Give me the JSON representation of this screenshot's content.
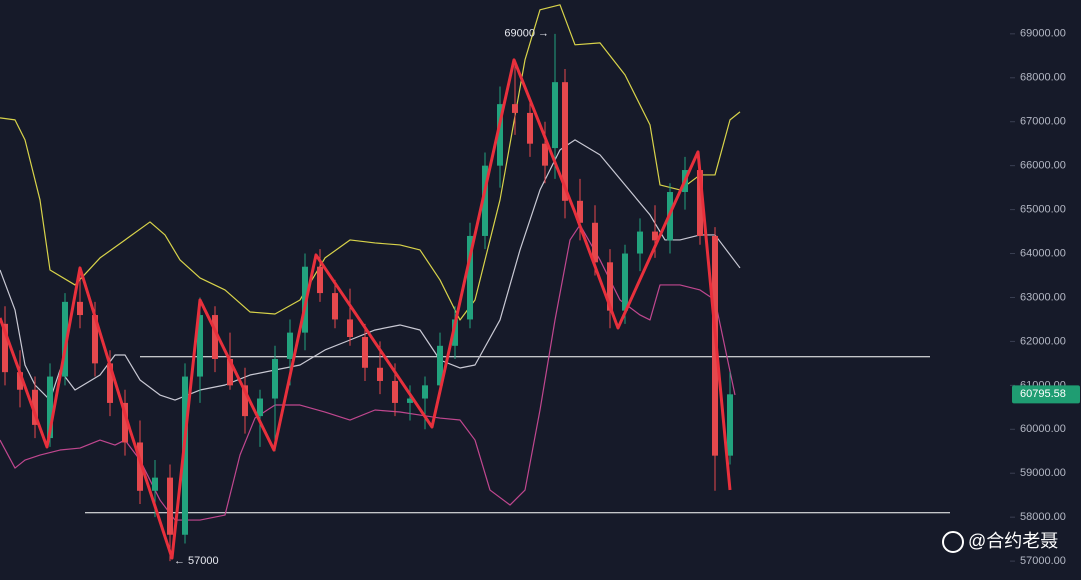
{
  "chart_data": {
    "type": "candlestick",
    "xlim": [
      0,
      202
    ],
    "ylim": [
      56570,
      69770
    ],
    "yticks": [
      {
        "value": 57000,
        "label": "57000.00"
      },
      {
        "value": 58000,
        "label": "58000.00"
      },
      {
        "value": 59000,
        "label": "59000.00"
      },
      {
        "value": 60000,
        "label": "60000.00"
      },
      {
        "value": 61000,
        "label": "61000.00"
      },
      {
        "value": 62000,
        "label": "62000.00"
      },
      {
        "value": 63000,
        "label": "63000.00"
      },
      {
        "value": 64000,
        "label": "64000.00"
      },
      {
        "value": 65000,
        "label": "65000.00"
      },
      {
        "value": 66000,
        "label": "66000.00"
      },
      {
        "value": 67000,
        "label": "67000.00"
      },
      {
        "value": 68000,
        "label": "68000.00"
      },
      {
        "value": 69000,
        "label": "69000.00"
      }
    ],
    "up_color": "#22a37e",
    "down_color": "#e5484d",
    "x": [
      1,
      4,
      7,
      10,
      13,
      16,
      19,
      22,
      25,
      28,
      31,
      34,
      37,
      40,
      43,
      46,
      49,
      52,
      55,
      58,
      61,
      64,
      67,
      70,
      73,
      76,
      79,
      82,
      85,
      88,
      91,
      94,
      97,
      100,
      103,
      106,
      109,
      111,
      113,
      116,
      119,
      122,
      125,
      128,
      131,
      134,
      137,
      140,
      143,
      146
    ],
    "open": [
      62400,
      61300,
      60900,
      59800,
      61200,
      62900,
      62600,
      61500,
      60600,
      59700,
      58600,
      58900,
      57600,
      61200,
      62600,
      61600,
      61000,
      60300,
      60700,
      61600,
      62200,
      63700,
      63100,
      62500,
      62100,
      61400,
      61100,
      60600,
      60700,
      61000,
      61900,
      62500,
      64400,
      66000,
      67400,
      67200,
      66500,
      66400,
      67900,
      65200,
      64700,
      63800,
      62700,
      64000,
      64500,
      64300,
      65400,
      65900,
      64400,
      59400
    ],
    "high": [
      62800,
      61800,
      61200,
      61500,
      63100,
      63700,
      62900,
      61800,
      60900,
      60200,
      59300,
      59200,
      61500,
      63000,
      62800,
      62200,
      61400,
      60900,
      61900,
      62500,
      64000,
      64100,
      63400,
      63200,
      62400,
      62000,
      61500,
      61000,
      61200,
      62200,
      62800,
      64700,
      66300,
      67800,
      68400,
      67500,
      67000,
      69000,
      68200,
      65700,
      65100,
      64100,
      64200,
      64800,
      65100,
      65600,
      66200,
      66000,
      64600,
      61300
    ],
    "low": [
      61000,
      60500,
      59800,
      59600,
      61000,
      62300,
      61200,
      60300,
      59400,
      58300,
      58000,
      57000,
      57400,
      60600,
      61300,
      60900,
      59900,
      59600,
      59500,
      61000,
      61800,
      62900,
      62300,
      61900,
      61100,
      60800,
      60300,
      60200,
      60000,
      60800,
      61600,
      62300,
      64100,
      65500,
      66700,
      66200,
      65600,
      65700,
      64800,
      64300,
      63500,
      62300,
      62400,
      63600,
      63900,
      64000,
      65000,
      64200,
      58600,
      59200
    ],
    "close": [
      61300,
      60900,
      60100,
      61200,
      62900,
      62600,
      61500,
      60600,
      59700,
      58600,
      58900,
      57600,
      61200,
      62600,
      61600,
      61000,
      60300,
      60700,
      61600,
      62200,
      63700,
      63100,
      62500,
      62100,
      61400,
      61100,
      60600,
      60700,
      61000,
      61900,
      62500,
      64400,
      66000,
      67400,
      67200,
      66500,
      66000,
      67900,
      65200,
      64700,
      63800,
      62700,
      64000,
      64500,
      64300,
      65400,
      65900,
      64400,
      59400,
      60795.58
    ],
    "lines": [
      {
        "color": "#d8d34a",
        "x": [
          0,
          3,
          5,
          8,
          10,
          15,
          20,
          25,
          30,
          33,
          36,
          40,
          45,
          50,
          55,
          60,
          65,
          70,
          75,
          80,
          84,
          88,
          92,
          95,
          100,
          105,
          108,
          112,
          115,
          120,
          125,
          130,
          132,
          136,
          140,
          143,
          146,
          148
        ],
        "values": [
          67087,
          67042,
          66586,
          65220,
          63626,
          63285,
          63900,
          64309,
          64719,
          64423,
          63854,
          63444,
          63171,
          62670,
          62624,
          62943,
          63900,
          64309,
          64241,
          64196,
          64082,
          63399,
          62488,
          62943,
          65220,
          68408,
          69546,
          69660,
          68750,
          68795,
          68066,
          66928,
          65562,
          65448,
          65789,
          65789,
          67042,
          67224
        ]
      },
      {
        "color": "#c9c9d4",
        "x": [
          0,
          3,
          5,
          7,
          10,
          12,
          15,
          20,
          23,
          25,
          28,
          32,
          35,
          40,
          45,
          50,
          55,
          60,
          65,
          70,
          75,
          80,
          84,
          88,
          92,
          95,
          100,
          104,
          108,
          112,
          115,
          120,
          125,
          130,
          133,
          136,
          140,
          143,
          148
        ],
        "values": [
          63626,
          62716,
          61463,
          61008,
          60666,
          61349,
          60894,
          61235,
          61691,
          61691,
          61122,
          60780,
          60666,
          60894,
          61008,
          61235,
          61349,
          61463,
          61805,
          62032,
          62260,
          62374,
          62260,
          61577,
          61395,
          61463,
          62488,
          64082,
          65448,
          66359,
          66586,
          66245,
          65562,
          64879,
          64309,
          64309,
          64423,
          64423,
          63672
        ]
      },
      {
        "color": "#c0478f",
        "x": [
          0,
          3,
          5,
          8,
          12,
          16,
          20,
          23,
          25,
          28,
          32,
          35,
          40,
          45,
          48,
          51,
          55,
          60,
          65,
          70,
          75,
          80,
          84,
          88,
          92,
          95,
          98,
          102,
          105,
          108,
          111,
          114,
          116,
          120,
          124,
          128,
          130,
          132,
          136,
          140,
          143,
          147
        ],
        "values": [
          59755,
          59117,
          59300,
          59414,
          59528,
          59573,
          59755,
          59641,
          59755,
          59300,
          58389,
          57934,
          57934,
          58048,
          59414,
          60256,
          60552,
          60552,
          60393,
          60211,
          60439,
          60393,
          60324,
          60256,
          60211,
          59755,
          58617,
          58276,
          58617,
          60439,
          62488,
          64309,
          64651,
          63854,
          62943,
          62602,
          62488,
          63285,
          63285,
          63171,
          62943,
          60780
        ]
      },
      {
        "color": "#e8303c",
        "width": 3,
        "x": [
          0,
          9.4,
          16,
          26,
          34.4,
          40,
          54.8,
          63.2,
          86.4,
          102.8,
          114.8,
          123.6,
          139.6,
          146
        ],
        "values": [
          62534,
          59597,
          63672,
          59984,
          57069,
          62943,
          59528,
          63968,
          60052,
          68408,
          64993,
          62306,
          66313,
          58618
        ]
      }
    ],
    "hlines": [
      61650,
      58100
    ],
    "annotations": [
      {
        "text": "69000 →",
        "x": 111,
        "y": 69000,
        "side": "left"
      },
      {
        "text": "← 57000",
        "x": 34.4,
        "y": 57000,
        "side": "right"
      }
    ],
    "last_price": 60795.58,
    "last_price_color": "#1f9d72",
    "watermark": "@合约老聂"
  }
}
